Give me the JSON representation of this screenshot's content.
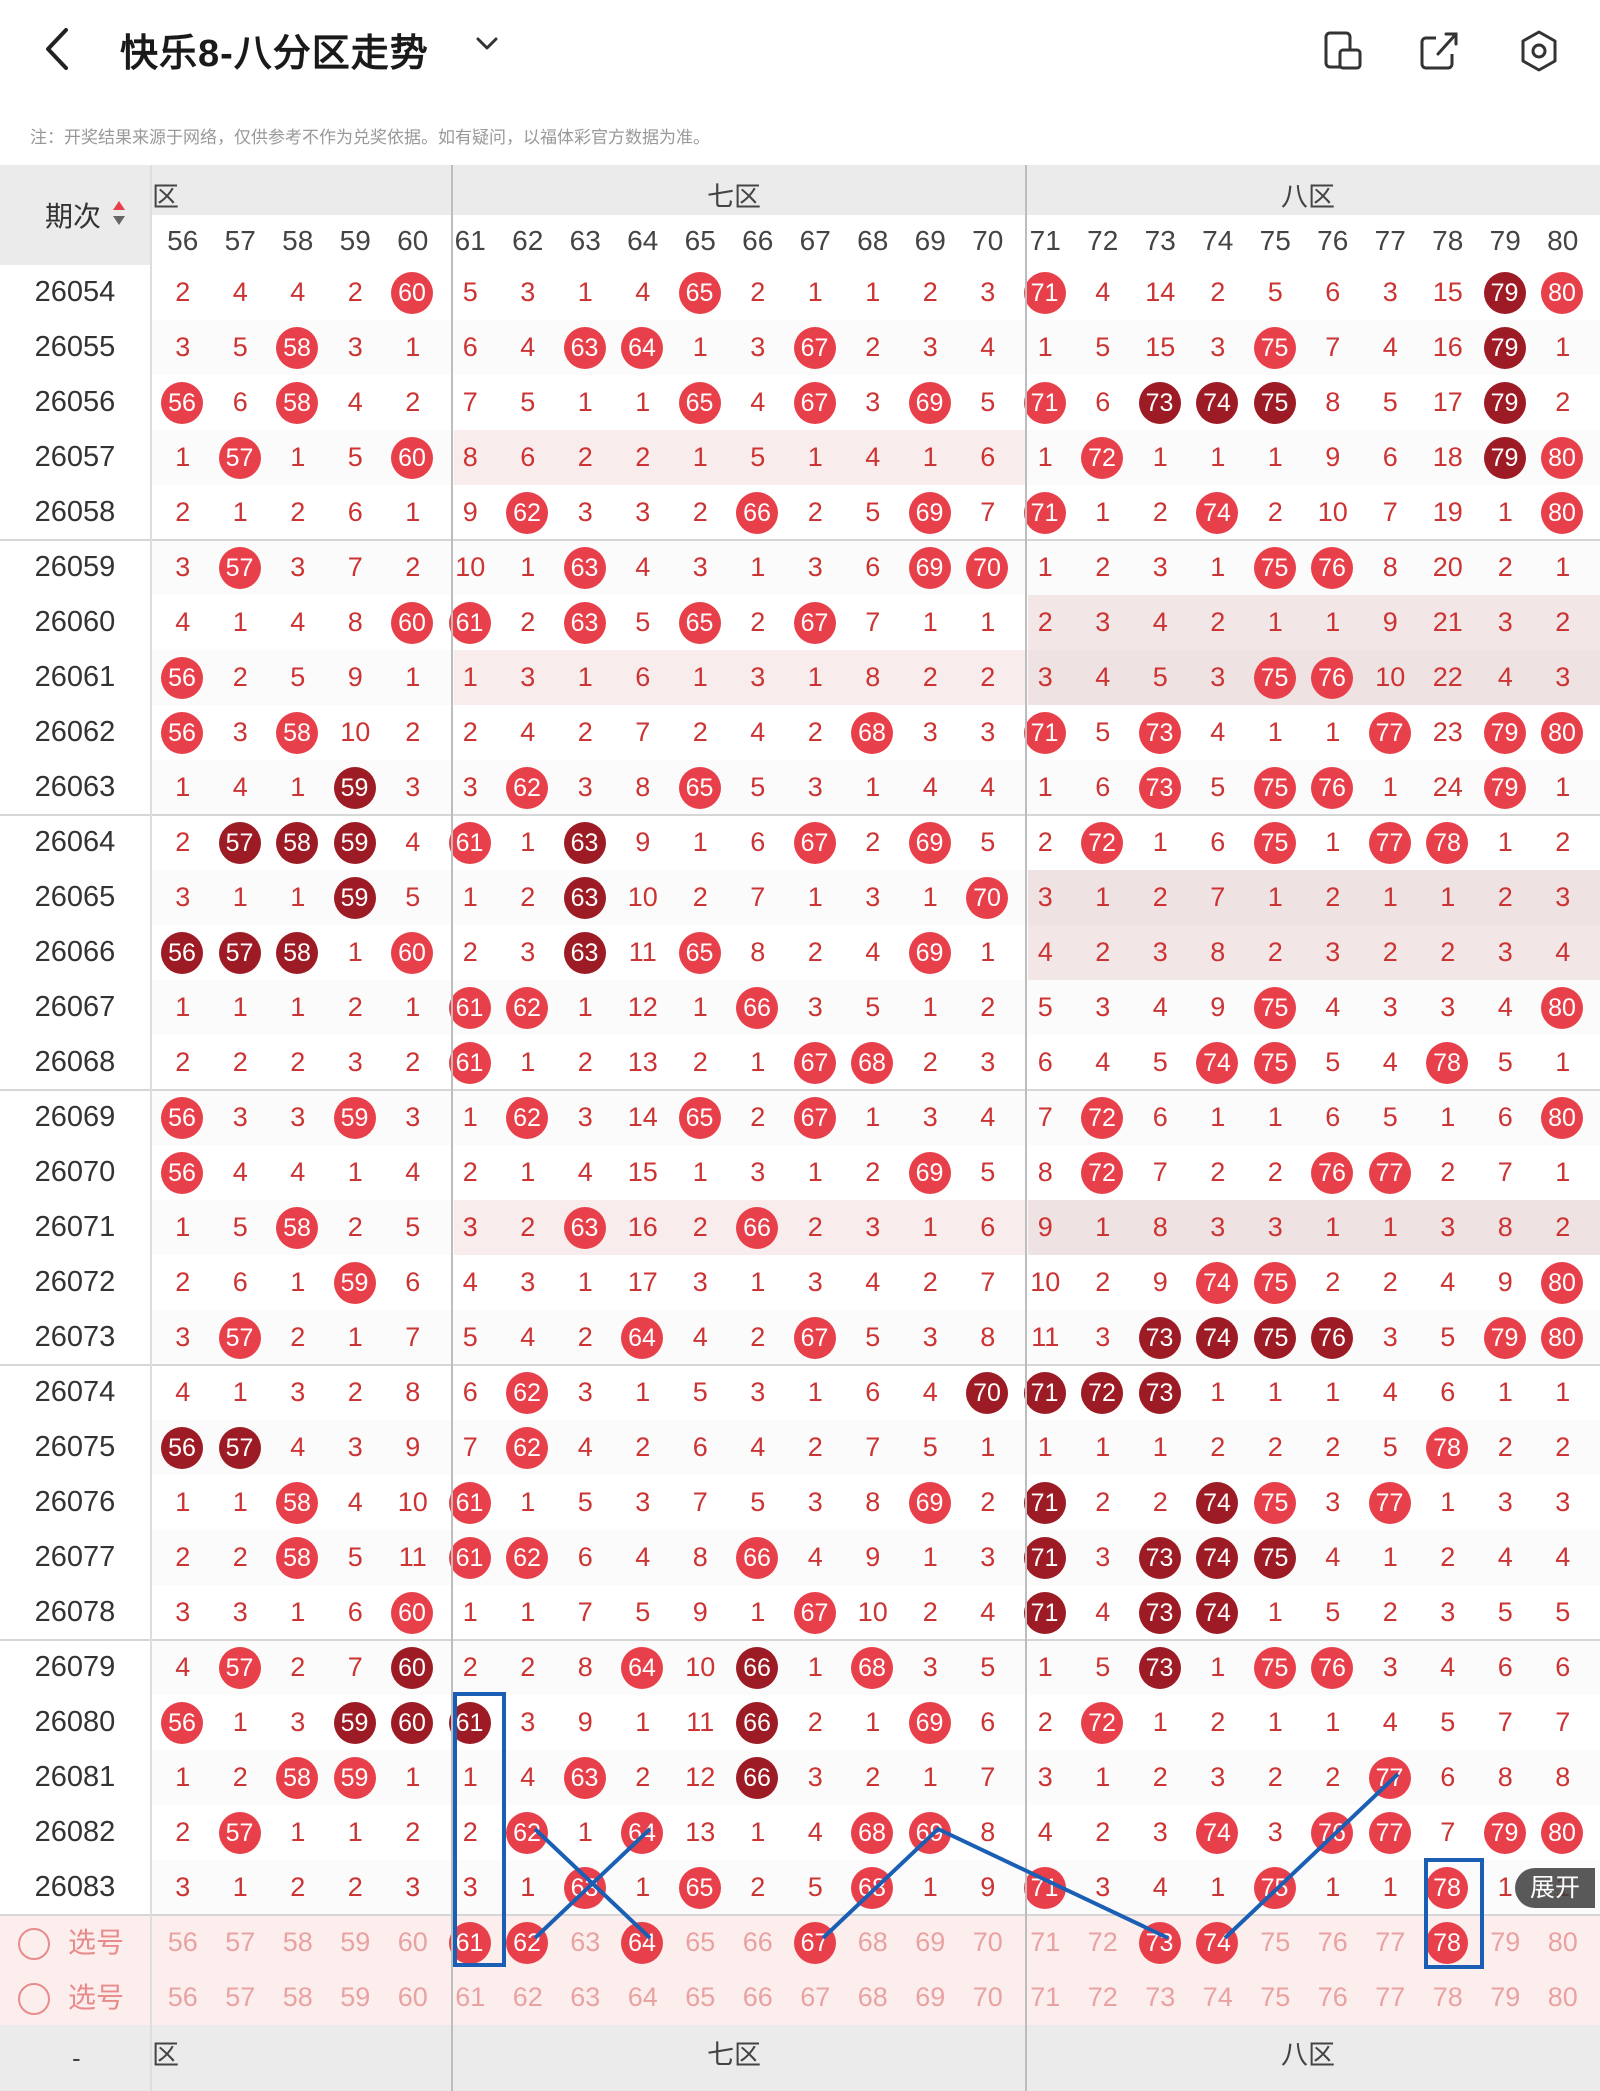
{
  "header": {
    "title": "快乐8-八分区走势",
    "back_icon": "chevron-left-icon",
    "dropdown_icon": "chevron-down-icon",
    "icons": [
      "screen-rotate-icon",
      "share-icon",
      "settings-icon"
    ]
  },
  "note": "注：开奖结果来源于网络，仅供参考不作为兑奖依据。如有疑问，以福体彩官方数据为准。",
  "table": {
    "period_header": "期次",
    "zones": [
      "六区",
      "七区",
      "八区"
    ],
    "partial_zone_label": "区",
    "columns": [
      "56",
      "57",
      "58",
      "59",
      "60",
      "61",
      "62",
      "63",
      "64",
      "65",
      "66",
      "67",
      "68",
      "69",
      "70",
      "71",
      "72",
      "73",
      "74",
      "75",
      "76",
      "77",
      "78",
      "79",
      "80"
    ],
    "rows": [
      {
        "period": "26054",
        "cells": [
          "2",
          "4",
          "4",
          "2",
          "B60",
          "5",
          "3",
          "1",
          "4",
          "B65",
          "2",
          "1",
          "1",
          "2",
          "3",
          "B71",
          "4",
          "14",
          "2",
          "5",
          "6",
          "3",
          "15",
          "D79",
          "B80"
        ]
      },
      {
        "period": "26055",
        "cells": [
          "3",
          "5",
          "B58",
          "3",
          "1",
          "6",
          "4",
          "B63",
          "B64",
          "1",
          "3",
          "B67",
          "2",
          "3",
          "4",
          "1",
          "5",
          "15",
          "3",
          "B75",
          "7",
          "4",
          "16",
          "D79",
          "1"
        ]
      },
      {
        "period": "26056",
        "cells": [
          "B56",
          "6",
          "B58",
          "4",
          "2",
          "7",
          "5",
          "1",
          "1",
          "B65",
          "4",
          "B67",
          "3",
          "B69",
          "5",
          "B71",
          "6",
          "D73",
          "D74",
          "D75",
          "8",
          "5",
          "17",
          "D79",
          "2"
        ]
      },
      {
        "period": "26057",
        "cells": [
          "1",
          "B57",
          "1",
          "5",
          "B60",
          "8",
          "6",
          "2",
          "2",
          "1",
          "5",
          "1",
          "4",
          "1",
          "6",
          "1",
          "B72",
          "1",
          "1",
          "1",
          "9",
          "6",
          "18",
          "D79",
          "B80"
        ]
      },
      {
        "period": "26058",
        "cells": [
          "2",
          "1",
          "2",
          "6",
          "1",
          "9",
          "B62",
          "3",
          "3",
          "2",
          "B66",
          "2",
          "5",
          "B69",
          "7",
          "B71",
          "1",
          "2",
          "B74",
          "2",
          "10",
          "7",
          "19",
          "1",
          "B80"
        ]
      },
      {
        "period": "26059",
        "cells": [
          "3",
          "B57",
          "3",
          "7",
          "2",
          "10",
          "1",
          "B63",
          "4",
          "3",
          "1",
          "3",
          "6",
          "B69",
          "B70",
          "1",
          "2",
          "3",
          "1",
          "B75",
          "B76",
          "8",
          "20",
          "2",
          "1"
        ]
      },
      {
        "period": "26060",
        "cells": [
          "4",
          "1",
          "4",
          "8",
          "B60",
          "B61",
          "2",
          "B63",
          "5",
          "B65",
          "2",
          "B67",
          "7",
          "1",
          "1",
          "2",
          "3",
          "4",
          "2",
          "1",
          "1",
          "9",
          "21",
          "3",
          "2"
        ]
      },
      {
        "period": "26061",
        "cells": [
          "B56",
          "2",
          "5",
          "9",
          "1",
          "1",
          "3",
          "1",
          "6",
          "1",
          "3",
          "1",
          "8",
          "2",
          "2",
          "3",
          "4",
          "5",
          "3",
          "B75",
          "B76",
          "10",
          "22",
          "4",
          "3"
        ]
      },
      {
        "period": "26062",
        "cells": [
          "B56",
          "3",
          "B58",
          "10",
          "2",
          "2",
          "4",
          "2",
          "7",
          "2",
          "4",
          "2",
          "B68",
          "3",
          "3",
          "B71",
          "5",
          "B73",
          "4",
          "1",
          "1",
          "B77",
          "23",
          "B79",
          "B80"
        ]
      },
      {
        "period": "26063",
        "cells": [
          "1",
          "4",
          "1",
          "D59",
          "3",
          "3",
          "B62",
          "3",
          "8",
          "B65",
          "5",
          "3",
          "1",
          "4",
          "4",
          "1",
          "6",
          "B73",
          "5",
          "B75",
          "B76",
          "1",
          "24",
          "B79",
          "1"
        ]
      },
      {
        "period": "26064",
        "cells": [
          "2",
          "D57",
          "D58",
          "D59",
          "4",
          "B61",
          "1",
          "D63",
          "9",
          "1",
          "6",
          "B67",
          "2",
          "B69",
          "5",
          "2",
          "B72",
          "1",
          "6",
          "B75",
          "1",
          "B77",
          "B78",
          "1",
          "2"
        ]
      },
      {
        "period": "26065",
        "cells": [
          "3",
          "1",
          "1",
          "D59",
          "5",
          "1",
          "2",
          "D63",
          "10",
          "2",
          "7",
          "1",
          "3",
          "1",
          "B70",
          "3",
          "1",
          "2",
          "7",
          "1",
          "2",
          "1",
          "1",
          "2",
          "3"
        ]
      },
      {
        "period": "26066",
        "cells": [
          "D56",
          "D57",
          "D58",
          "1",
          "B60",
          "2",
          "3",
          "D63",
          "11",
          "B65",
          "8",
          "2",
          "4",
          "B69",
          "1",
          "4",
          "2",
          "3",
          "8",
          "2",
          "3",
          "2",
          "2",
          "3",
          "4"
        ]
      },
      {
        "period": "26067",
        "cells": [
          "1",
          "1",
          "1",
          "2",
          "1",
          "B61",
          "B62",
          "1",
          "12",
          "1",
          "B66",
          "3",
          "5",
          "1",
          "2",
          "5",
          "3",
          "4",
          "9",
          "B75",
          "4",
          "3",
          "3",
          "4",
          "B80"
        ]
      },
      {
        "period": "26068",
        "cells": [
          "2",
          "2",
          "2",
          "3",
          "2",
          "B61",
          "1",
          "2",
          "13",
          "2",
          "1",
          "B67",
          "B68",
          "2",
          "3",
          "6",
          "4",
          "5",
          "B74",
          "B75",
          "5",
          "4",
          "B78",
          "5",
          "1"
        ]
      },
      {
        "period": "26069",
        "cells": [
          "B56",
          "3",
          "3",
          "B59",
          "3",
          "1",
          "B62",
          "3",
          "14",
          "B65",
          "2",
          "B67",
          "1",
          "3",
          "4",
          "7",
          "B72",
          "6",
          "1",
          "1",
          "6",
          "5",
          "1",
          "6",
          "B80"
        ]
      },
      {
        "period": "26070",
        "cells": [
          "B56",
          "4",
          "4",
          "1",
          "4",
          "2",
          "1",
          "4",
          "15",
          "1",
          "3",
          "1",
          "2",
          "B69",
          "5",
          "8",
          "B72",
          "7",
          "2",
          "2",
          "B76",
          "B77",
          "2",
          "7",
          "1"
        ]
      },
      {
        "period": "26071",
        "cells": [
          "1",
          "5",
          "B58",
          "2",
          "5",
          "3",
          "2",
          "B63",
          "16",
          "2",
          "B66",
          "2",
          "3",
          "1",
          "6",
          "9",
          "1",
          "8",
          "3",
          "3",
          "1",
          "1",
          "3",
          "8",
          "2"
        ]
      },
      {
        "period": "26072",
        "cells": [
          "2",
          "6",
          "1",
          "B59",
          "6",
          "4",
          "3",
          "1",
          "17",
          "3",
          "1",
          "3",
          "4",
          "2",
          "7",
          "10",
          "2",
          "9",
          "B74",
          "B75",
          "2",
          "2",
          "4",
          "9",
          "B80"
        ]
      },
      {
        "period": "26073",
        "cells": [
          "3",
          "B57",
          "2",
          "1",
          "7",
          "5",
          "4",
          "2",
          "B64",
          "4",
          "2",
          "B67",
          "5",
          "3",
          "8",
          "11",
          "3",
          "D73",
          "D74",
          "D75",
          "D76",
          "3",
          "5",
          "B79",
          "B80"
        ]
      },
      {
        "period": "26074",
        "cells": [
          "4",
          "1",
          "3",
          "2",
          "8",
          "6",
          "B62",
          "3",
          "1",
          "5",
          "3",
          "1",
          "6",
          "4",
          "D70",
          "D71",
          "D72",
          "D73",
          "1",
          "1",
          "1",
          "4",
          "6",
          "1",
          "1"
        ]
      },
      {
        "period": "26075",
        "cells": [
          "D56",
          "D57",
          "4",
          "3",
          "9",
          "7",
          "B62",
          "4",
          "2",
          "6",
          "4",
          "2",
          "7",
          "5",
          "1",
          "1",
          "1",
          "1",
          "2",
          "2",
          "2",
          "5",
          "B78",
          "2",
          "2"
        ]
      },
      {
        "period": "26076",
        "cells": [
          "1",
          "1",
          "B58",
          "4",
          "10",
          "B61",
          "1",
          "5",
          "3",
          "7",
          "5",
          "3",
          "8",
          "B69",
          "2",
          "D71",
          "2",
          "2",
          "D74",
          "B75",
          "3",
          "B77",
          "1",
          "3",
          "3"
        ]
      },
      {
        "period": "26077",
        "cells": [
          "2",
          "2",
          "B58",
          "5",
          "11",
          "B61",
          "B62",
          "6",
          "4",
          "8",
          "B66",
          "4",
          "9",
          "1",
          "3",
          "D71",
          "3",
          "D73",
          "D74",
          "D75",
          "4",
          "1",
          "2",
          "4",
          "4"
        ]
      },
      {
        "period": "26078",
        "cells": [
          "3",
          "3",
          "1",
          "6",
          "B60",
          "1",
          "1",
          "7",
          "5",
          "9",
          "1",
          "B67",
          "10",
          "2",
          "4",
          "D71",
          "4",
          "D73",
          "D74",
          "1",
          "5",
          "2",
          "3",
          "5",
          "5"
        ]
      },
      {
        "period": "26079",
        "cells": [
          "4",
          "B57",
          "2",
          "7",
          "D60",
          "2",
          "2",
          "8",
          "B64",
          "10",
          "D66",
          "1",
          "B68",
          "3",
          "5",
          "1",
          "5",
          "D73",
          "1",
          "B75",
          "B76",
          "3",
          "4",
          "6",
          "6"
        ]
      },
      {
        "period": "26080",
        "cells": [
          "B56",
          "1",
          "3",
          "D59",
          "D60",
          "D61",
          "3",
          "9",
          "1",
          "11",
          "D66",
          "2",
          "1",
          "B69",
          "6",
          "2",
          "B72",
          "1",
          "2",
          "1",
          "1",
          "4",
          "5",
          "7",
          "7"
        ]
      },
      {
        "period": "26081",
        "cells": [
          "1",
          "2",
          "B58",
          "B59",
          "1",
          "1",
          "4",
          "B63",
          "2",
          "12",
          "D66",
          "3",
          "2",
          "1",
          "7",
          "3",
          "1",
          "2",
          "3",
          "2",
          "2",
          "B77",
          "6",
          "8",
          "8"
        ]
      },
      {
        "period": "26082",
        "cells": [
          "2",
          "B57",
          "1",
          "1",
          "2",
          "2",
          "B62",
          "1",
          "B64",
          "13",
          "1",
          "4",
          "B68",
          "B69",
          "8",
          "4",
          "2",
          "3",
          "B74",
          "3",
          "B76",
          "B77",
          "7",
          "B79",
          "B80"
        ]
      },
      {
        "period": "26083",
        "cells": [
          "3",
          "1",
          "2",
          "2",
          "3",
          "3",
          "1",
          "B63",
          "1",
          "B65",
          "2",
          "5",
          "B68",
          "1",
          "9",
          "B71",
          "3",
          "4",
          "1",
          "B75",
          "1",
          "1",
          "B78",
          "1",
          "1"
        ]
      }
    ],
    "pick_rows": [
      {
        "label": "选号",
        "cells": [
          "56",
          "57",
          "58",
          "59",
          "60",
          "B61",
          "B62",
          "63",
          "B64",
          "65",
          "66",
          "B67",
          "68",
          "69",
          "70",
          "71",
          "72",
          "B73",
          "B74",
          "75",
          "76",
          "77",
          "B78",
          "79",
          "80"
        ]
      },
      {
        "label": "选号",
        "cells": [
          "56",
          "57",
          "58",
          "59",
          "60",
          "61",
          "62",
          "63",
          "64",
          "65",
          "66",
          "67",
          "68",
          "69",
          "70",
          "71",
          "72",
          "73",
          "74",
          "75",
          "76",
          "77",
          "78",
          "79",
          "80"
        ]
      }
    ],
    "bottom_zones": [
      "区",
      "七区",
      "八区"
    ],
    "period_bottom": "-"
  },
  "expand_button": "展开",
  "colors": {
    "ball_red": "#e8404a",
    "ball_dark": "#9c1b24",
    "text_red": "#c33",
    "annotation_blue": "#1a5fb4"
  }
}
